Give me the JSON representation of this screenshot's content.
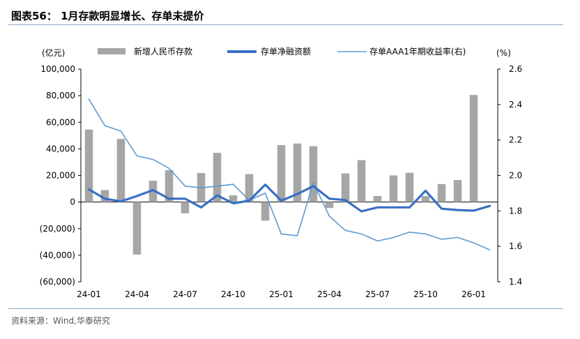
{
  "title": "图表56： 1月存款明显增长、存单未提价",
  "source": "资料来源：Wind,华泰研究",
  "colors": {
    "bar": "#a6a6a6",
    "thick_line": "#3a6fc4",
    "thin_line": "#5b9bd5",
    "rule": "#8fa8c8"
  },
  "chart_data": {
    "type": "bar+line",
    "left_axis_unit": "(亿元)",
    "right_axis_unit": "(%)",
    "ylim_left": [
      -60000,
      100000
    ],
    "ylim_right": [
      1.4,
      2.6
    ],
    "left_ticks": [
      "100,000",
      "80,000",
      "60,000",
      "40,000",
      "20,000",
      "0",
      "(20,000)",
      "(40,000)",
      "(60,000)"
    ],
    "right_ticks": [
      "2.6",
      "2.4",
      "2.2",
      "2.0",
      "1.8",
      "1.6",
      "1.4"
    ],
    "x_tick_labels": [
      "24-01",
      "24-04",
      "24-07",
      "24-10",
      "25-01",
      "25-04",
      "25-07",
      "25-10",
      "26-01"
    ],
    "x": [
      "24-01",
      "24-02",
      "24-03",
      "24-04",
      "24-05",
      "24-06",
      "24-07",
      "24-08",
      "24-09",
      "24-10",
      "24-11",
      "24-12",
      "25-01",
      "25-02",
      "25-03",
      "25-04",
      "25-05",
      "25-06",
      "25-07",
      "25-08",
      "25-09",
      "25-10",
      "25-11",
      "25-12",
      "26-01",
      "26-02"
    ],
    "legend_labels": [
      "新增人民币存款",
      "存单净融资额",
      "存单AAA1年期收益率(右)"
    ],
    "series": [
      {
        "name": "新增人民币存款",
        "type": "bar",
        "axis": "left",
        "values": [
          54500,
          9000,
          47500,
          -39500,
          16000,
          24000,
          -8500,
          21800,
          37000,
          5000,
          21000,
          -14000,
          42800,
          44000,
          42000,
          -4500,
          21500,
          31500,
          4500,
          20000,
          22000,
          4500,
          13500,
          16500,
          80500,
          null
        ]
      },
      {
        "name": "存单净融资额",
        "type": "line",
        "axis": "left",
        "values": [
          9500,
          2500,
          500,
          4500,
          9000,
          2500,
          2500,
          -4000,
          5000,
          -1000,
          1000,
          13000,
          1000,
          6000,
          12000,
          2500,
          1500,
          -7000,
          -4000,
          -4000,
          -4000,
          8500,
          -5000,
          -6000,
          -6500,
          -3000
        ]
      },
      {
        "name": "存单AAA1年期收益率(右)",
        "type": "line",
        "axis": "right",
        "values": [
          2.43,
          2.28,
          2.25,
          2.11,
          2.09,
          2.04,
          1.94,
          1.93,
          1.94,
          1.95,
          1.86,
          1.9,
          1.67,
          1.66,
          1.96,
          1.77,
          1.69,
          1.67,
          1.63,
          1.65,
          1.68,
          1.67,
          1.64,
          1.65,
          1.62,
          1.58
        ]
      }
    ]
  }
}
